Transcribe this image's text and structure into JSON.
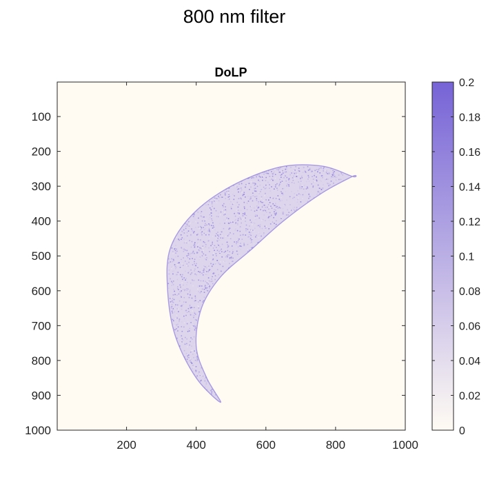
{
  "chart_data": {
    "type": "heatmap",
    "suptitle": "800 nm filter",
    "title": "DoLP",
    "xlabel": "",
    "ylabel": "",
    "xlim": [
      1,
      1000
    ],
    "ylim": [
      1,
      1000
    ],
    "y_reversed": true,
    "x_ticks": [
      200,
      400,
      600,
      800,
      1000
    ],
    "y_ticks": [
      100,
      200,
      300,
      400,
      500,
      600,
      700,
      800,
      900,
      1000
    ],
    "colorbar": {
      "range": [
        0,
        0.2
      ],
      "ticks": [
        0,
        0.02,
        0.04,
        0.06,
        0.08,
        0.1,
        0.12,
        0.14,
        0.16,
        0.18,
        0.2
      ],
      "tick_labels": [
        "0",
        "0.02",
        "0.04",
        "0.06",
        "0.08",
        "0.1",
        "0.12",
        "0.14",
        "0.16",
        "0.18",
        "0.2"
      ],
      "color_low": "#fffbf3",
      "color_high": "#7663d6"
    },
    "background_value": 0,
    "crescent": {
      "outer_arc": [
        [
          848,
          272
        ],
        [
          760,
          242
        ],
        [
          640,
          245
        ],
        [
          500,
          300
        ],
        [
          390,
          380
        ],
        [
          325,
          480
        ],
        [
          318,
          600
        ],
        [
          340,
          730
        ],
        [
          400,
          850
        ],
        [
          470,
          920
        ]
      ],
      "inner_arc": [
        [
          470,
          920
        ],
        [
          430,
          850
        ],
        [
          400,
          760
        ],
        [
          415,
          650
        ],
        [
          470,
          560
        ],
        [
          560,
          480
        ],
        [
          650,
          400
        ],
        [
          760,
          320
        ],
        [
          848,
          272
        ]
      ],
      "typical_value": 0.09
    }
  },
  "colors": {
    "background": "#ffffff",
    "axes_face": "#fffbf3",
    "crescent_mark": "#7663d6",
    "axis_line": "#262626"
  }
}
